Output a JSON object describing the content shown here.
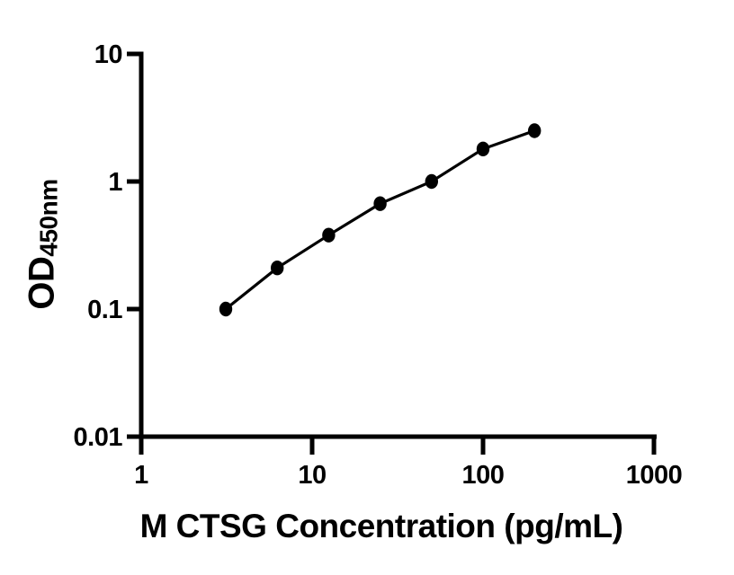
{
  "figure": {
    "background": "#ffffff",
    "foreground": "#000000"
  },
  "chart_data": {
    "type": "scatter",
    "title": "",
    "xlabel": "M CTSG Concentration (pg/mL)",
    "ylabel": "OD",
    "ylabel_subscript": "450nm",
    "xscale": "log",
    "yscale": "log",
    "xlim": [
      1,
      1000
    ],
    "ylim": [
      0.01,
      10
    ],
    "x_ticks": [
      "1",
      "10",
      "100",
      "1000"
    ],
    "x_tick_values": [
      1,
      10,
      100,
      1000
    ],
    "y_ticks": [
      "10",
      "1",
      "0.1",
      "0.01"
    ],
    "y_tick_values": [
      10,
      1,
      0.1,
      0.01
    ],
    "grid": false,
    "legend": "none",
    "series": [
      {
        "x": [
          3.125,
          6.25,
          12.5,
          25,
          50,
          100,
          200
        ],
        "y": [
          0.1,
          0.21,
          0.38,
          0.67,
          1.0,
          1.8,
          2.5
        ],
        "marker": "filled-circle",
        "line": "solid",
        "color": "#000000"
      }
    ]
  }
}
